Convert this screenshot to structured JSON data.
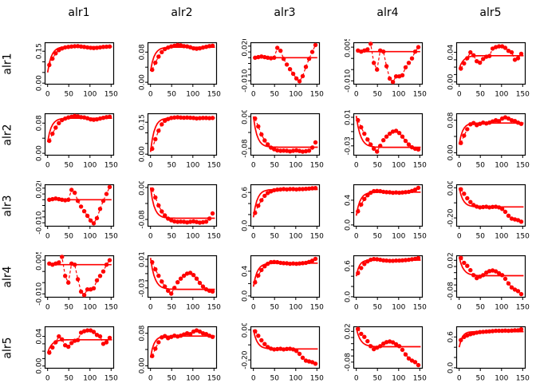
{
  "figure": {
    "column_titles": [
      "alr1",
      "alr2",
      "alr3",
      "alr4",
      "alr5"
    ],
    "row_labels": [
      "alr1",
      "alr2",
      "alr3",
      "alr4",
      "alr5"
    ],
    "background_color": "#ffffff",
    "axis_color": "#000000"
  },
  "chart_data": {
    "type": "scatter",
    "kind": "empirical-variogram-matrix-with-fitted-model",
    "point_color": "#ff0000",
    "line_color": "#ff0000",
    "model_color": "#ff0000",
    "x": [
      4,
      11.5,
      19,
      26.5,
      34,
      41.5,
      49,
      56.5,
      64,
      71.5,
      79,
      86.5,
      94,
      101.5,
      109,
      116.5,
      124,
      131.5,
      139,
      146.5
    ],
    "xlim": [
      -6,
      156
    ],
    "xticks": [
      0,
      50,
      100,
      150
    ],
    "xtick_labels": [
      "0",
      "50",
      "100",
      "150"
    ],
    "grid": [
      [
        "s11",
        "s12",
        "s13",
        "s14",
        "s15"
      ],
      [
        "s12",
        "s22",
        "s23",
        "s24",
        "s25"
      ],
      [
        "s13",
        "s23",
        "s33",
        "s34",
        "s35"
      ],
      [
        "s14",
        "s24",
        "s34",
        "s44",
        "s45"
      ],
      [
        "s15",
        "s25",
        "s35",
        "s45",
        "s55"
      ]
    ],
    "series": {
      "s11": {
        "ylim": [
          -0.005,
          0.19
        ],
        "yticks": [
          0,
          0.05,
          0.1,
          0.15
        ],
        "ytick_labels": [
          "0.00",
          "",
          "",
          "0.15"
        ],
        "y": [
          0.085,
          0.115,
          0.14,
          0.155,
          0.163,
          0.168,
          0.17,
          0.172,
          0.173,
          0.174,
          0.172,
          0.17,
          0.168,
          0.166,
          0.165,
          0.166,
          0.168,
          0.17,
          0.171,
          0.172
        ],
        "model": {
          "type": "exp",
          "v0": 0.05,
          "v1": 0.171,
          "range": 9
        }
      },
      "s12": {
        "ylim": [
          -0.005,
          0.105
        ],
        "yticks": [
          0,
          0.04,
          0.08
        ],
        "ytick_labels": [
          "0.00",
          "",
          "0.08"
        ],
        "y": [
          0.033,
          0.052,
          0.068,
          0.08,
          0.088,
          0.092,
          0.095,
          0.097,
          0.099,
          0.098,
          0.096,
          0.095,
          0.093,
          0.09,
          0.089,
          0.09,
          0.092,
          0.094,
          0.096,
          0.097
        ],
        "model": {
          "type": "exp",
          "v0": 0.03,
          "v1": 0.093,
          "range": 9
        }
      },
      "s13": {
        "ylim": [
          -0.013,
          0.023
        ],
        "yticks": [
          -0.01,
          -0.005,
          0,
          0.005,
          0.01,
          0.015,
          0.02
        ],
        "ytick_labels": [
          "-0.010",
          "",
          "",
          "",
          "",
          "",
          "0.020"
        ],
        "y": [
          0.01,
          0.0105,
          0.011,
          0.0105,
          0.01,
          0.0095,
          0.01,
          0.0185,
          0.016,
          0.009,
          0.004,
          0.0,
          -0.004,
          -0.008,
          -0.0105,
          -0.006,
          0.002,
          0.009,
          0.015,
          0.021
        ],
        "model": {
          "type": "flat",
          "value": 0.01
        }
      },
      "s14": {
        "ylim": [
          -0.0115,
          0.007
        ],
        "yticks": [
          -0.01,
          -0.005,
          0,
          0.005
        ],
        "ytick_labels": [
          "-0.010",
          "",
          "",
          "0.005"
        ],
        "y": [
          0.0035,
          0.003,
          0.0035,
          0.004,
          0.0065,
          -0.002,
          -0.005,
          0.0035,
          0.003,
          -0.0035,
          -0.009,
          -0.0105,
          -0.008,
          -0.008,
          -0.0075,
          -0.004,
          -0.002,
          0.0,
          0.003,
          0.005
        ],
        "model": {
          "type": "flat",
          "value": 0.003
        }
      },
      "s15": {
        "ylim": [
          -0.003,
          0.053
        ],
        "yticks": [
          0,
          0.01,
          0.02,
          0.03,
          0.04
        ],
        "ytick_labels": [
          "0.00",
          "",
          "",
          "",
          "0.04"
        ],
        "y": [
          0.018,
          0.025,
          0.032,
          0.04,
          0.036,
          0.028,
          0.026,
          0.031,
          0.034,
          0.035,
          0.045,
          0.047,
          0.048,
          0.048,
          0.046,
          0.042,
          0.04,
          0.03,
          0.032,
          0.038
        ],
        "model": {
          "type": "exp",
          "v0": 0.018,
          "v1": 0.0355,
          "range": 10
        }
      },
      "s22": {
        "ylim": [
          -0.005,
          0.19
        ],
        "yticks": [
          0,
          0.05,
          0.1,
          0.15
        ],
        "ytick_labels": [
          "0.00",
          "",
          "",
          "0.15"
        ],
        "y": [
          0.025,
          0.07,
          0.11,
          0.14,
          0.157,
          0.165,
          0.17,
          0.172,
          0.173,
          0.172,
          0.171,
          0.172,
          0.171,
          0.17,
          0.168,
          0.169,
          0.17,
          0.17,
          0.169,
          0.17
        ],
        "model": {
          "type": "exp",
          "v0": 0.01,
          "v1": 0.17,
          "range": 9
        }
      },
      "s23": {
        "ylim": [
          -0.097,
          0.007
        ],
        "yticks": [
          -0.08,
          -0.04,
          0
        ],
        "ytick_labels": [
          "-0.08",
          "",
          "0.00"
        ],
        "y": [
          -0.005,
          -0.025,
          -0.045,
          -0.06,
          -0.07,
          -0.078,
          -0.082,
          -0.085,
          -0.086,
          -0.0855,
          -0.086,
          -0.0875,
          -0.086,
          -0.085,
          -0.0865,
          -0.088,
          -0.087,
          -0.0855,
          -0.078,
          -0.065
        ],
        "model": {
          "type": "exp",
          "v0": 0.0,
          "v1": -0.077,
          "range": 9
        }
      },
      "s24": {
        "ylim": [
          -0.043,
          0.015
        ],
        "yticks": [
          -0.03,
          -0.02,
          -0.01,
          0,
          0.01
        ],
        "ytick_labels": [
          "-0.03",
          "",
          "",
          "",
          "0.01"
        ],
        "y": [
          0.006,
          -0.004,
          -0.013,
          -0.021,
          -0.028,
          -0.034,
          -0.038,
          -0.03,
          -0.022,
          -0.017,
          -0.013,
          -0.01,
          -0.009,
          -0.012,
          -0.017,
          -0.023,
          -0.028,
          -0.032,
          -0.034,
          -0.035
        ],
        "model": {
          "type": "exp",
          "v0": 0.012,
          "v1": -0.032,
          "range": 10
        }
      },
      "s25": {
        "ylim": [
          -0.006,
          0.096
        ],
        "yticks": [
          0,
          0.04,
          0.08
        ],
        "ytick_labels": [
          "0.00",
          "",
          "0.08"
        ],
        "y": [
          0.024,
          0.042,
          0.058,
          0.07,
          0.073,
          0.068,
          0.071,
          0.074,
          0.072,
          0.074,
          0.077,
          0.08,
          0.078,
          0.084,
          0.087,
          0.084,
          0.08,
          0.078,
          0.074,
          0.071
        ],
        "model": {
          "type": "exp",
          "v0": 0.02,
          "v1": 0.073,
          "range": 8
        }
      },
      "s33": {
        "ylim": [
          -0.01,
          0.74
        ],
        "yticks": [
          0,
          0.2,
          0.4,
          0.6
        ],
        "ytick_labels": [
          "0.0",
          "",
          "",
          "0.6"
        ],
        "y": [
          0.23,
          0.36,
          0.46,
          0.54,
          0.59,
          0.62,
          0.64,
          0.65,
          0.655,
          0.66,
          0.655,
          0.66,
          0.66,
          0.655,
          0.66,
          0.66,
          0.665,
          0.67,
          0.675,
          0.68
        ],
        "model": {
          "type": "exp",
          "v0": 0.15,
          "v1": 0.655,
          "range": 9
        }
      },
      "s34": {
        "ylim": [
          -0.02,
          0.65
        ],
        "yticks": [
          0,
          0.2,
          0.4
        ],
        "ytick_labels": [
          "0.0",
          "",
          "0.4"
        ],
        "y": [
          0.22,
          0.33,
          0.42,
          0.48,
          0.52,
          0.545,
          0.55,
          0.545,
          0.535,
          0.53,
          0.527,
          0.52,
          0.525,
          0.52,
          0.525,
          0.53,
          0.535,
          0.55,
          0.57,
          0.6
        ],
        "model": {
          "type": "exp",
          "v0": 0.15,
          "v1": 0.53,
          "range": 9
        }
      },
      "s35": {
        "ylim": [
          -0.255,
          0.02
        ],
        "yticks": [
          -0.2,
          -0.1,
          0
        ],
        "ytick_labels": [
          "-0.20",
          "",
          "0.00"
        ],
        "y": [
          -0.01,
          -0.04,
          -0.07,
          -0.095,
          -0.115,
          -0.125,
          -0.13,
          -0.128,
          -0.126,
          -0.13,
          -0.127,
          -0.126,
          -0.13,
          -0.14,
          -0.16,
          -0.185,
          -0.205,
          -0.21,
          -0.215,
          -0.225
        ],
        "model": {
          "type": "exp",
          "v0": 0.0,
          "v1": -0.127,
          "range": 9
        }
      },
      "s44": {
        "ylim": [
          -0.01,
          0.8
        ],
        "yticks": [
          0,
          0.2,
          0.4,
          0.6
        ],
        "ytick_labels": [
          "0.0",
          "",
          "",
          "0.6"
        ],
        "y": [
          0.46,
          0.56,
          0.64,
          0.69,
          0.72,
          0.735,
          0.73,
          0.72,
          0.71,
          0.705,
          0.7,
          0.7,
          0.705,
          0.705,
          0.71,
          0.715,
          0.72,
          0.73,
          0.74,
          0.755
        ],
        "model": {
          "type": "exp",
          "v0": 0.4,
          "v1": 0.715,
          "range": 7
        }
      },
      "s45": {
        "ylim": [
          -0.1,
          0.035
        ],
        "yticks": [
          -0.08,
          -0.06,
          -0.04,
          -0.02,
          0,
          0.02
        ],
        "ytick_labels": [
          "-0.08",
          "",
          "",
          "",
          "",
          "0.02"
        ],
        "y": [
          0.028,
          0.012,
          0.002,
          -0.012,
          -0.028,
          -0.038,
          -0.033,
          -0.028,
          -0.02,
          -0.015,
          -0.013,
          -0.016,
          -0.022,
          -0.028,
          -0.04,
          -0.055,
          -0.068,
          -0.075,
          -0.08,
          -0.09
        ],
        "model": {
          "type": "exp",
          "v0": 0.03,
          "v1": -0.03,
          "range": 10
        }
      },
      "s55": {
        "ylim": [
          -0.01,
          0.8
        ],
        "yticks": [
          0,
          0.2,
          0.4,
          0.6
        ],
        "ytick_labels": [
          "0.0",
          "",
          "",
          "0.6"
        ],
        "y": [
          0.54,
          0.6,
          0.63,
          0.655,
          0.67,
          0.685,
          0.695,
          0.7,
          0.705,
          0.71,
          0.715,
          0.72,
          0.72,
          0.72,
          0.725,
          0.72,
          0.725,
          0.73,
          0.73,
          0.75
        ],
        "model": {
          "type": "exp",
          "v0": 0.4,
          "v1": 0.705,
          "range": 7
        }
      }
    }
  }
}
